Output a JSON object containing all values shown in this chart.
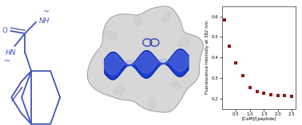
{
  "scatter_x": [
    0.1,
    0.25,
    0.5,
    0.75,
    1.0,
    1.25,
    1.5,
    1.75,
    2.0,
    2.25,
    2.5
  ],
  "scatter_y": [
    0.585,
    0.455,
    0.375,
    0.31,
    0.255,
    0.235,
    0.225,
    0.22,
    0.215,
    0.215,
    0.21
  ],
  "scatter_color": "#8B1a1a",
  "xlabel": "[CaM]/[peptide]",
  "ylabel": "Fluorescence Intensity at 382 nm",
  "xlim": [
    0,
    2.65
  ],
  "ylim": [
    0.15,
    0.65
  ],
  "xticks": [
    0.5,
    1.0,
    1.5,
    2.0,
    2.5
  ],
  "yticks": [
    0.2,
    0.3,
    0.4,
    0.5,
    0.6
  ],
  "marker": "s",
  "marker_size": 8,
  "background_color": "#ffffff",
  "blue": "#4455bb",
  "protein_gray": "#c8c8c8",
  "protein_edge": "#999999",
  "helix_blue": "#1133cc"
}
